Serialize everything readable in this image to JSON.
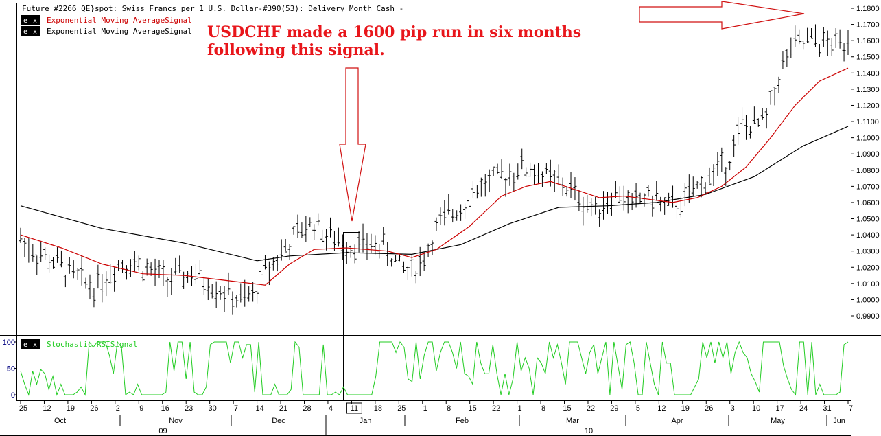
{
  "header": {
    "title": "Future #2266 QE}spot: Swiss Francs per 1 U.S. Dollar-#390(53): Delivery Month Cash -",
    "legend": [
      {
        "icon": "ex-badge-icon",
        "label": "Exponential Moving AverageSignal",
        "color": "#cc0000"
      },
      {
        "icon": "ex-badge-icon",
        "label": "Exponential Moving AverageSignal",
        "color": "#000000"
      }
    ]
  },
  "annotation": {
    "line1": "USDCHF made a 1600 pip run in six months",
    "line2": "following this signal.",
    "color": "#e8161b",
    "arrow_color": "#d01010"
  },
  "badge": {
    "e": "e",
    "x": "x"
  },
  "subpanel": {
    "label": "Stochastic RSISignal",
    "color": "#22cc22"
  },
  "colors": {
    "price_bars": "#000000",
    "ema_fast": "#cc0000",
    "ema_slow": "#000000",
    "stoch": "#22cc22",
    "axis_label": "#000000",
    "stoch_axis": "#000080"
  },
  "chart_data": {
    "type": "line",
    "title": "Future #2266 QE}spot: Swiss Francs per 1 U.S. Dollar-#390(53): Delivery Month Cash -",
    "price_panel": {
      "yticks": [
        "1.1800",
        "1.1700",
        "1.1600",
        "1.1500",
        "1.1400",
        "1.1300",
        "1.1200",
        "1.1100",
        "1.1000",
        "1.0900",
        "1.0800",
        "1.0700",
        "1.0600",
        "1.0500",
        "1.0400",
        "1.0300",
        "1.0200",
        "1.0100",
        "1.0000",
        "0.9900"
      ],
      "ylim": [
        0.985,
        1.182
      ],
      "close_points": [
        [
          0,
          1.038
        ],
        [
          3,
          1.03
        ],
        [
          6,
          1.026
        ],
        [
          9,
          1.022
        ],
        [
          12,
          1.016
        ],
        [
          15,
          1.012
        ],
        [
          18,
          1.008
        ],
        [
          21,
          1.014
        ],
        [
          24,
          1.022
        ],
        [
          27,
          1.024
        ],
        [
          30,
          1.02
        ],
        [
          33,
          1.016
        ],
        [
          36,
          1.012
        ],
        [
          39,
          1.014
        ],
        [
          42,
          1.016
        ],
        [
          45,
          1.012
        ],
        [
          48,
          1.008
        ],
        [
          51,
          1.003
        ],
        [
          54,
          0.999
        ],
        [
          57,
          1.002
        ],
        [
          60,
          1.018
        ],
        [
          63,
          1.026
        ],
        [
          66,
          1.035
        ],
        [
          69,
          1.043
        ],
        [
          72,
          1.048
        ],
        [
          75,
          1.04
        ],
        [
          78,
          1.036
        ],
        [
          81,
          1.034
        ],
        [
          84,
          1.033
        ],
        [
          87,
          1.034
        ],
        [
          90,
          1.031
        ],
        [
          93,
          1.02
        ],
        [
          96,
          1.018
        ],
        [
          99,
          1.026
        ],
        [
          102,
          1.044
        ],
        [
          105,
          1.052
        ],
        [
          108,
          1.058
        ],
        [
          111,
          1.066
        ],
        [
          114,
          1.072
        ],
        [
          117,
          1.074
        ],
        [
          120,
          1.078
        ],
        [
          123,
          1.082
        ],
        [
          126,
          1.08
        ],
        [
          129,
          1.076
        ],
        [
          132,
          1.072
        ],
        [
          135,
          1.068
        ],
        [
          138,
          1.06
        ],
        [
          141,
          1.056
        ],
        [
          144,
          1.062
        ],
        [
          147,
          1.066
        ],
        [
          150,
          1.058
        ],
        [
          153,
          1.064
        ],
        [
          156,
          1.062
        ],
        [
          159,
          1.056
        ],
        [
          162,
          1.06
        ],
        [
          165,
          1.066
        ],
        [
          168,
          1.074
        ],
        [
          171,
          1.08
        ],
        [
          174,
          1.088
        ],
        [
          177,
          1.108
        ],
        [
          180,
          1.106
        ],
        [
          183,
          1.112
        ],
        [
          186,
          1.138
        ],
        [
          189,
          1.155
        ],
        [
          192,
          1.158
        ],
        [
          195,
          1.16
        ],
        [
          198,
          1.157
        ],
        [
          201,
          1.158
        ],
        [
          203,
          1.162
        ]
      ],
      "ema_fast": [
        [
          0,
          1.04
        ],
        [
          10,
          1.032
        ],
        [
          20,
          1.022
        ],
        [
          30,
          1.016
        ],
        [
          40,
          1.015
        ],
        [
          50,
          1.012
        ],
        [
          60,
          1.009
        ],
        [
          66,
          1.022
        ],
        [
          72,
          1.031
        ],
        [
          80,
          1.032
        ],
        [
          90,
          1.03
        ],
        [
          96,
          1.026
        ],
        [
          102,
          1.031
        ],
        [
          110,
          1.045
        ],
        [
          118,
          1.064
        ],
        [
          124,
          1.07
        ],
        [
          130,
          1.073
        ],
        [
          136,
          1.068
        ],
        [
          142,
          1.063
        ],
        [
          148,
          1.064
        ],
        [
          154,
          1.062
        ],
        [
          160,
          1.06
        ],
        [
          166,
          1.063
        ],
        [
          172,
          1.07
        ],
        [
          178,
          1.082
        ],
        [
          184,
          1.1
        ],
        [
          190,
          1.12
        ],
        [
          196,
          1.135
        ],
        [
          203,
          1.143
        ]
      ],
      "ema_slow": [
        [
          0,
          1.058
        ],
        [
          20,
          1.044
        ],
        [
          40,
          1.035
        ],
        [
          58,
          1.024
        ],
        [
          66,
          1.027
        ],
        [
          80,
          1.029
        ],
        [
          96,
          1.028
        ],
        [
          108,
          1.034
        ],
        [
          120,
          1.047
        ],
        [
          132,
          1.057
        ],
        [
          144,
          1.058
        ],
        [
          156,
          1.06
        ],
        [
          168,
          1.065
        ],
        [
          180,
          1.076
        ],
        [
          192,
          1.095
        ],
        [
          203,
          1.107
        ]
      ]
    },
    "stoch_panel": {
      "yticks": [
        "100",
        "50",
        "0"
      ],
      "ylim": [
        -5,
        105
      ],
      "values": [
        45,
        20,
        0,
        45,
        20,
        48,
        40,
        10,
        35,
        0,
        20,
        0,
        0,
        0,
        5,
        15,
        0,
        100,
        90,
        100,
        100,
        100,
        75,
        40,
        100,
        90,
        0,
        5,
        0,
        20,
        0,
        0,
        0,
        0,
        0,
        0,
        5,
        100,
        45,
        100,
        100,
        30,
        100,
        5,
        0,
        0,
        15,
        95,
        100,
        100,
        100,
        100,
        60,
        100,
        100,
        70,
        95,
        95,
        5,
        100,
        0,
        0,
        0,
        20,
        0,
        0,
        0,
        10,
        100,
        90,
        0,
        0,
        0,
        0,
        0,
        95,
        0,
        0,
        5,
        0,
        15,
        0,
        0,
        0,
        0,
        0,
        0,
        0,
        35,
        100,
        100,
        100,
        100,
        80,
        100,
        90,
        30,
        25,
        100,
        30,
        75,
        100,
        100,
        45,
        80,
        100,
        100,
        80,
        50,
        100,
        40,
        35,
        20,
        100,
        60,
        40,
        40,
        95,
        40,
        0,
        40,
        0,
        30,
        100,
        45,
        70,
        50,
        0,
        70,
        60,
        40,
        100,
        70,
        95,
        60,
        20,
        100,
        100,
        100,
        70,
        40,
        80,
        95,
        40,
        70,
        100,
        0,
        100,
        55,
        10,
        95,
        100,
        60,
        0,
        0,
        100,
        60,
        20,
        0,
        100,
        60,
        60,
        0,
        0,
        0,
        0,
        0,
        15,
        30,
        100,
        70,
        100,
        60,
        100,
        70,
        100,
        40,
        80,
        100,
        80,
        70,
        40,
        25,
        5,
        100,
        100,
        100,
        100,
        100,
        55,
        30,
        10,
        0,
        100,
        100,
        0,
        100,
        0,
        20,
        0,
        0,
        0,
        0,
        5,
        95,
        100
      ]
    },
    "x_ticks_days": [
      "25",
      "12",
      "19",
      "26",
      "2",
      "9",
      "16",
      "23",
      "30",
      "7",
      "14",
      "21",
      "28",
      "4",
      "11",
      "18",
      "25",
      "1",
      "8",
      "15",
      "22",
      "1",
      "8",
      "15",
      "22",
      "29",
      "5",
      "12",
      "19",
      "26",
      "3",
      "10",
      "17",
      "24",
      "31",
      "7"
    ],
    "x_months": [
      "Oct",
      "Nov",
      "Dec",
      "Jan",
      "Feb",
      "Mar",
      "Apr",
      "May",
      "Jun"
    ],
    "x_years": [
      "09",
      "10"
    ]
  }
}
